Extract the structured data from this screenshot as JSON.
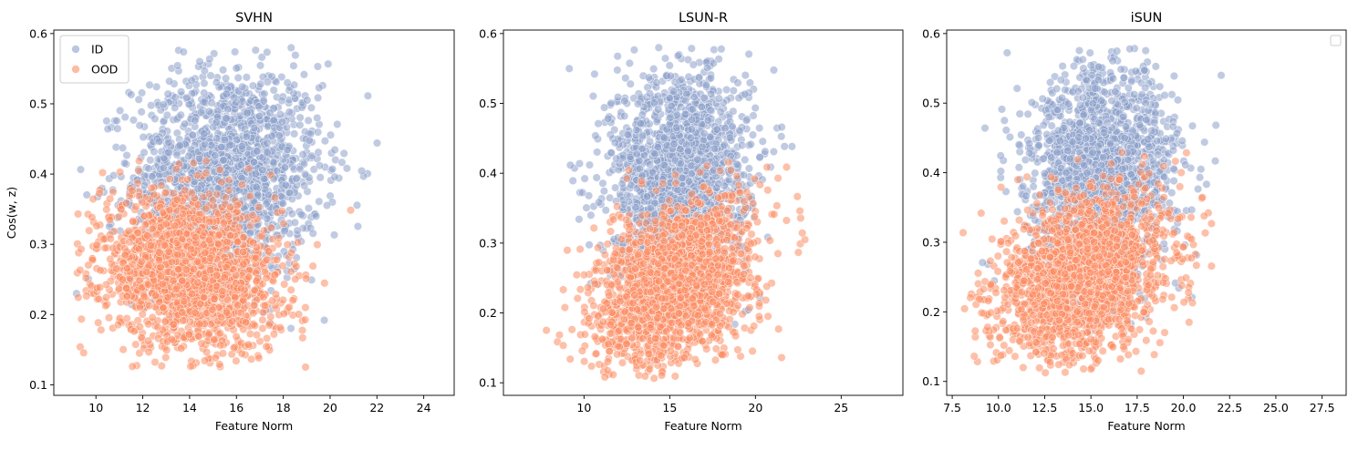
{
  "chart_data": [
    {
      "type": "scatter",
      "title": "SVHN",
      "xlabel": "Feature Norm",
      "ylabel": "Cos(w, z)",
      "xlim": [
        8.2,
        25.3
      ],
      "ylim": [
        0.085,
        0.605
      ],
      "xticks": [
        10,
        12,
        14,
        16,
        18,
        20,
        22,
        24
      ],
      "xtick_labels": [
        "10",
        "12",
        "14",
        "16",
        "18",
        "20",
        "22",
        "24"
      ],
      "yticks": [
        0.1,
        0.2,
        0.3,
        0.4,
        0.5,
        0.6
      ],
      "ytick_labels": [
        "0.1",
        "0.2",
        "0.3",
        "0.4",
        "0.5",
        "0.6"
      ],
      "legend": {
        "position": "top-left",
        "entries": [
          "ID",
          "OOD"
        ]
      },
      "series": [
        {
          "name": "ID",
          "color": "#8da0cb",
          "dist": {
            "mx": 15.6,
            "sx": 2.0,
            "my": 0.4,
            "sy": 0.075,
            "rho": 0.05,
            "ylo": 0.11,
            "yhi": 0.58,
            "xlo": 9.0,
            "xhi": 24.8
          }
        },
        {
          "name": "OOD",
          "color": "#fc8d62",
          "dist": {
            "mx": 14.0,
            "sx": 1.9,
            "my": 0.26,
            "sy": 0.055,
            "rho": -0.15,
            "ylo": 0.125,
            "yhi": 0.425,
            "xlo": 9.2,
            "xhi": 23.0
          }
        }
      ]
    },
    {
      "type": "scatter",
      "title": "LSUN-R",
      "xlabel": "Feature Norm",
      "ylabel": "",
      "xlim": [
        5.3,
        28.6
      ],
      "ylim": [
        0.082,
        0.605
      ],
      "xticks": [
        10,
        15,
        20,
        25
      ],
      "xtick_labels": [
        "10",
        "15",
        "20",
        "25"
      ],
      "yticks": [
        0.1,
        0.2,
        0.3,
        0.4,
        0.5,
        0.6
      ],
      "ytick_labels": [
        "0.1",
        "0.2",
        "0.3",
        "0.4",
        "0.5",
        "0.6"
      ],
      "legend": null,
      "series": [
        {
          "name": "ID",
          "color": "#8da0cb",
          "dist": {
            "mx": 15.6,
            "sx": 2.0,
            "my": 0.4,
            "sy": 0.075,
            "rho": 0.05,
            "ylo": 0.11,
            "yhi": 0.58,
            "xlo": 8.5,
            "xhi": 24.6
          }
        },
        {
          "name": "OOD",
          "color": "#fc8d62",
          "dist": {
            "mx": 15.3,
            "sx": 2.3,
            "my": 0.24,
            "sy": 0.06,
            "rho": 0.35,
            "ylo": 0.105,
            "yhi": 0.42,
            "xlo": 6.0,
            "xhi": 27.5
          }
        }
      ]
    },
    {
      "type": "scatter",
      "title": "iSUN",
      "xlabel": "Feature Norm",
      "ylabel": "",
      "xlim": [
        7.2,
        28.8
      ],
      "ylim": [
        0.08,
        0.605
      ],
      "xticks": [
        7.5,
        10.0,
        12.5,
        15.0,
        17.5,
        20.0,
        22.5,
        25.0,
        27.5
      ],
      "xtick_labels": [
        "7.5",
        "10.0",
        "12.5",
        "15.0",
        "17.5",
        "20.0",
        "22.5",
        "25.0",
        "27.5"
      ],
      "yticks": [
        0.1,
        0.2,
        0.3,
        0.4,
        0.5,
        0.6
      ],
      "ytick_labels": [
        "0.1",
        "0.2",
        "0.3",
        "0.4",
        "0.5",
        "0.6"
      ],
      "legend": {
        "position": "top-right",
        "entries": []
      },
      "series": [
        {
          "name": "ID",
          "color": "#8da0cb",
          "dist": {
            "mx": 15.6,
            "sx": 2.0,
            "my": 0.4,
            "sy": 0.075,
            "rho": 0.05,
            "ylo": 0.11,
            "yhi": 0.58,
            "xlo": 9.0,
            "xhi": 24.6
          }
        },
        {
          "name": "OOD",
          "color": "#fc8d62",
          "dist": {
            "mx": 14.6,
            "sx": 2.3,
            "my": 0.25,
            "sy": 0.06,
            "rho": 0.3,
            "ylo": 0.11,
            "yhi": 0.47,
            "xlo": 8.0,
            "xhi": 28.0
          }
        }
      ]
    }
  ]
}
